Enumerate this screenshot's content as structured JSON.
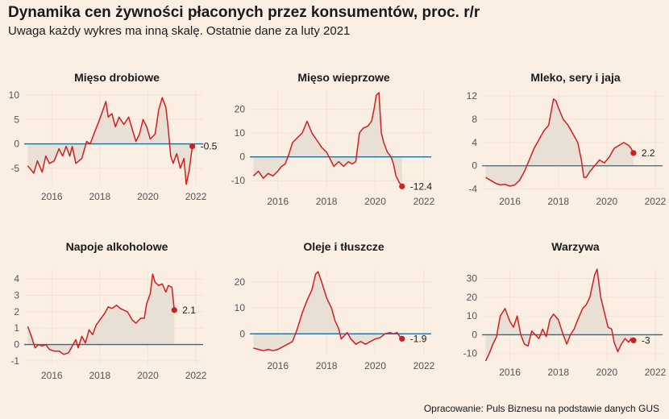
{
  "header": {
    "title": "Dynamika cen żywności płaconych przez konsumentów, proc. r/r",
    "subtitle": "Uwaga każdy wykres ma inną skalę. Ostatnie dane za luty 2021"
  },
  "footer": {
    "caption": "Opracowanie: Puls Biznesu na podstawie danych GUS"
  },
  "colors": {
    "background": "#fbeee2",
    "line": "#d11f1f",
    "area": "#e8dfd5",
    "zero_line": "#1f6f9a",
    "grid": "#f3e3d6"
  },
  "chart_data": [
    {
      "type": "area",
      "title": "Mięso drobiowe",
      "x_ticks": [
        2016,
        2018,
        2020,
        2022
      ],
      "xlim": [
        2014.85,
        2022.3
      ],
      "y_ticks": [
        -5,
        0,
        5,
        10
      ],
      "ylim": [
        -8.5,
        11
      ],
      "end_label": "-0.5",
      "points": [
        [
          2015.0,
          -4.5
        ],
        [
          2015.25,
          -6
        ],
        [
          2015.4,
          -3.5
        ],
        [
          2015.6,
          -5.8
        ],
        [
          2015.75,
          -2.5
        ],
        [
          2015.9,
          -4
        ],
        [
          2016.1,
          -3.5
        ],
        [
          2016.3,
          -1
        ],
        [
          2016.45,
          -2.5
        ],
        [
          2016.6,
          -0.5
        ],
        [
          2016.75,
          -2.5
        ],
        [
          2016.85,
          -0.5
        ],
        [
          2017.0,
          -4
        ],
        [
          2017.25,
          -3
        ],
        [
          2017.45,
          0.5
        ],
        [
          2017.6,
          0
        ],
        [
          2017.75,
          2
        ],
        [
          2017.95,
          4.5
        ],
        [
          2018.1,
          6.5
        ],
        [
          2018.25,
          8.7
        ],
        [
          2018.35,
          5.5
        ],
        [
          2018.5,
          6.2
        ],
        [
          2018.65,
          3.5
        ],
        [
          2018.8,
          5.5
        ],
        [
          2019.0,
          4
        ],
        [
          2019.2,
          5.5
        ],
        [
          2019.35,
          3
        ],
        [
          2019.5,
          0.5
        ],
        [
          2019.65,
          2
        ],
        [
          2019.8,
          5
        ],
        [
          2019.95,
          3.5
        ],
        [
          2020.1,
          1
        ],
        [
          2020.3,
          2
        ],
        [
          2020.45,
          7
        ],
        [
          2020.6,
          9.5
        ],
        [
          2020.75,
          7.5
        ],
        [
          2020.85,
          3
        ],
        [
          2020.95,
          -2.5
        ],
        [
          2021.05,
          -4
        ],
        [
          2021.2,
          -2
        ],
        [
          2021.35,
          -5
        ],
        [
          2021.5,
          -3
        ],
        [
          2021.6,
          -8.3
        ],
        [
          2021.72,
          -5.5
        ],
        [
          2021.85,
          -0.5
        ]
      ],
      "end_point": [
        2021.85,
        -0.5
      ]
    },
    {
      "type": "area",
      "title": "Mięso wieprzowe",
      "x_ticks": [
        2016,
        2018,
        2020,
        2022
      ],
      "xlim": [
        2014.85,
        2022.3
      ],
      "y_ticks": [
        -10,
        0,
        10,
        20
      ],
      "ylim": [
        -14,
        28
      ],
      "end_label": "-12.4",
      "points": [
        [
          2015.0,
          -8
        ],
        [
          2015.2,
          -6
        ],
        [
          2015.4,
          -9
        ],
        [
          2015.6,
          -7
        ],
        [
          2015.8,
          -8
        ],
        [
          2016.0,
          -6
        ],
        [
          2016.15,
          -4
        ],
        [
          2016.3,
          -3
        ],
        [
          2016.45,
          1
        ],
        [
          2016.6,
          6
        ],
        [
          2016.8,
          8
        ],
        [
          2017.0,
          10
        ],
        [
          2017.2,
          15
        ],
        [
          2017.4,
          10
        ],
        [
          2017.6,
          7
        ],
        [
          2017.8,
          4
        ],
        [
          2018.0,
          2
        ],
        [
          2018.15,
          -1
        ],
        [
          2018.3,
          -4
        ],
        [
          2018.5,
          -2
        ],
        [
          2018.7,
          -4
        ],
        [
          2018.9,
          -2
        ],
        [
          2019.05,
          -3
        ],
        [
          2019.2,
          -2
        ],
        [
          2019.35,
          10
        ],
        [
          2019.5,
          12
        ],
        [
          2019.7,
          13
        ],
        [
          2019.85,
          15
        ],
        [
          2019.95,
          20
        ],
        [
          2020.05,
          26
        ],
        [
          2020.15,
          27
        ],
        [
          2020.25,
          10
        ],
        [
          2020.35,
          6
        ],
        [
          2020.5,
          2
        ],
        [
          2020.65,
          0
        ],
        [
          2020.75,
          -3
        ],
        [
          2020.85,
          -8
        ],
        [
          2021.0,
          -11
        ],
        [
          2021.1,
          -12.4
        ]
      ],
      "end_point": [
        2021.1,
        -12.4
      ]
    },
    {
      "type": "area",
      "title": "Mleko, sery i jaja",
      "x_ticks": [
        2016,
        2018,
        2020,
        2022
      ],
      "xlim": [
        2014.85,
        2022.3
      ],
      "y_ticks": [
        -4,
        0,
        4,
        8,
        12
      ],
      "ylim": [
        -4.2,
        13
      ],
      "end_label": "2.2",
      "points": [
        [
          2015.0,
          -2
        ],
        [
          2015.2,
          -2.5
        ],
        [
          2015.4,
          -3
        ],
        [
          2015.6,
          -3.3
        ],
        [
          2015.8,
          -3.2
        ],
        [
          2016.0,
          -3.5
        ],
        [
          2016.2,
          -3.3
        ],
        [
          2016.4,
          -2.5
        ],
        [
          2016.6,
          -1
        ],
        [
          2016.8,
          1
        ],
        [
          2017.0,
          3
        ],
        [
          2017.2,
          4.5
        ],
        [
          2017.4,
          6
        ],
        [
          2017.6,
          7
        ],
        [
          2017.8,
          11.5
        ],
        [
          2017.9,
          11.2
        ],
        [
          2018.0,
          10
        ],
        [
          2018.2,
          8
        ],
        [
          2018.4,
          7
        ],
        [
          2018.6,
          5.5
        ],
        [
          2018.8,
          4
        ],
        [
          2018.95,
          1
        ],
        [
          2019.05,
          -2
        ],
        [
          2019.15,
          -2
        ],
        [
          2019.3,
          -1
        ],
        [
          2019.5,
          0
        ],
        [
          2019.7,
          1
        ],
        [
          2019.9,
          0.5
        ],
        [
          2020.1,
          1.5
        ],
        [
          2020.3,
          3
        ],
        [
          2020.5,
          3.5
        ],
        [
          2020.7,
          4
        ],
        [
          2020.9,
          3.5
        ],
        [
          2021.0,
          3
        ],
        [
          2021.1,
          2.2
        ]
      ],
      "end_point": [
        2021.1,
        2.2
      ]
    },
    {
      "type": "area",
      "title": "Napoje alkoholowe",
      "x_ticks": [
        2016,
        2018,
        2020,
        2022
      ],
      "xlim": [
        2014.85,
        2022.3
      ],
      "y_ticks": [
        -1,
        0,
        1,
        2,
        3,
        4
      ],
      "ylim": [
        -1.2,
        4.6
      ],
      "end_label": "2.1",
      "points": [
        [
          2015.0,
          1.1
        ],
        [
          2015.15,
          0.5
        ],
        [
          2015.3,
          -0.2
        ],
        [
          2015.45,
          0
        ],
        [
          2015.6,
          -0.1
        ],
        [
          2015.75,
          0
        ],
        [
          2015.9,
          -0.3
        ],
        [
          2016.1,
          -0.4
        ],
        [
          2016.3,
          -0.4
        ],
        [
          2016.5,
          -0.6
        ],
        [
          2016.7,
          -0.5
        ],
        [
          2016.85,
          -0.1
        ],
        [
          2017.0,
          0.3
        ],
        [
          2017.1,
          -0.2
        ],
        [
          2017.25,
          0.5
        ],
        [
          2017.4,
          0.1
        ],
        [
          2017.55,
          0.9
        ],
        [
          2017.7,
          0.6
        ],
        [
          2017.85,
          1.2
        ],
        [
          2018.0,
          1.5
        ],
        [
          2018.2,
          1.9
        ],
        [
          2018.35,
          2.3
        ],
        [
          2018.5,
          2.2
        ],
        [
          2018.7,
          2.4
        ],
        [
          2018.85,
          2.2
        ],
        [
          2019.0,
          2.1
        ],
        [
          2019.15,
          2.0
        ],
        [
          2019.35,
          1.5
        ],
        [
          2019.5,
          1.3
        ],
        [
          2019.7,
          1.6
        ],
        [
          2019.85,
          1.6
        ],
        [
          2019.95,
          2.5
        ],
        [
          2020.1,
          3.1
        ],
        [
          2020.2,
          4.3
        ],
        [
          2020.3,
          3.8
        ],
        [
          2020.45,
          3.6
        ],
        [
          2020.6,
          3.7
        ],
        [
          2020.75,
          3.2
        ],
        [
          2020.85,
          3.6
        ],
        [
          2021.0,
          3.5
        ],
        [
          2021.1,
          2.1
        ]
      ],
      "end_point": [
        2021.1,
        2.1
      ]
    },
    {
      "type": "area",
      "title": "Oleje i tłuszcze",
      "x_ticks": [
        2016,
        2018,
        2020,
        2022
      ],
      "xlim": [
        2014.85,
        2022.3
      ],
      "y_ticks": [
        0,
        10,
        20
      ],
      "ylim": [
        -8,
        25
      ],
      "end_label": "-1.9",
      "points": [
        [
          2015.0,
          -5.5
        ],
        [
          2015.2,
          -6
        ],
        [
          2015.4,
          -6.5
        ],
        [
          2015.6,
          -6
        ],
        [
          2015.8,
          -6.5
        ],
        [
          2016.0,
          -6
        ],
        [
          2016.2,
          -5
        ],
        [
          2016.4,
          -4
        ],
        [
          2016.6,
          -3
        ],
        [
          2016.8,
          2
        ],
        [
          2017.0,
          8
        ],
        [
          2017.2,
          13
        ],
        [
          2017.4,
          17
        ],
        [
          2017.55,
          23
        ],
        [
          2017.65,
          24
        ],
        [
          2017.8,
          20
        ],
        [
          2018.0,
          14
        ],
        [
          2018.2,
          10
        ],
        [
          2018.35,
          5
        ],
        [
          2018.5,
          2
        ],
        [
          2018.6,
          -2
        ],
        [
          2018.7,
          -1
        ],
        [
          2018.85,
          0.5
        ],
        [
          2019.0,
          -2
        ],
        [
          2019.2,
          -4
        ],
        [
          2019.4,
          -3
        ],
        [
          2019.6,
          -4
        ],
        [
          2019.8,
          -3
        ],
        [
          2020.0,
          -2
        ],
        [
          2020.2,
          -1.5
        ],
        [
          2020.4,
          0
        ],
        [
          2020.6,
          0.5
        ],
        [
          2020.75,
          0
        ],
        [
          2020.9,
          0.5
        ],
        [
          2021.0,
          -1
        ],
        [
          2021.1,
          -1.9
        ]
      ],
      "end_point": [
        2021.1,
        -1.9
      ]
    },
    {
      "type": "area",
      "title": "Warzywa",
      "x_ticks": [
        2016,
        2018,
        2020,
        2022
      ],
      "xlim": [
        2014.85,
        2022.3
      ],
      "y_ticks": [
        -10,
        0,
        10,
        20,
        30
      ],
      "ylim": [
        -14,
        35
      ],
      "end_label": "-3",
      "points": [
        [
          2015.0,
          -14
        ],
        [
          2015.15,
          -10
        ],
        [
          2015.3,
          -5
        ],
        [
          2015.45,
          -1
        ],
        [
          2015.6,
          10
        ],
        [
          2015.8,
          14
        ],
        [
          2016.0,
          7
        ],
        [
          2016.15,
          4
        ],
        [
          2016.3,
          10
        ],
        [
          2016.45,
          0
        ],
        [
          2016.6,
          -5
        ],
        [
          2016.75,
          -6
        ],
        [
          2016.9,
          2
        ],
        [
          2017.05,
          0
        ],
        [
          2017.2,
          -2
        ],
        [
          2017.35,
          3
        ],
        [
          2017.5,
          -1
        ],
        [
          2017.65,
          8
        ],
        [
          2017.8,
          11
        ],
        [
          2018.0,
          8
        ],
        [
          2018.2,
          0
        ],
        [
          2018.35,
          -5
        ],
        [
          2018.5,
          0
        ],
        [
          2018.65,
          3
        ],
        [
          2018.8,
          8
        ],
        [
          2019.0,
          14
        ],
        [
          2019.15,
          16
        ],
        [
          2019.3,
          20
        ],
        [
          2019.5,
          32
        ],
        [
          2019.6,
          35
        ],
        [
          2019.75,
          20
        ],
        [
          2019.9,
          12
        ],
        [
          2020.05,
          4
        ],
        [
          2020.2,
          3
        ],
        [
          2020.3,
          -4
        ],
        [
          2020.45,
          -9
        ],
        [
          2020.6,
          -5
        ],
        [
          2020.75,
          -2
        ],
        [
          2020.9,
          -4
        ],
        [
          2021.0,
          -2
        ],
        [
          2021.1,
          -3
        ]
      ],
      "end_point": [
        2021.1,
        -3
      ]
    }
  ]
}
